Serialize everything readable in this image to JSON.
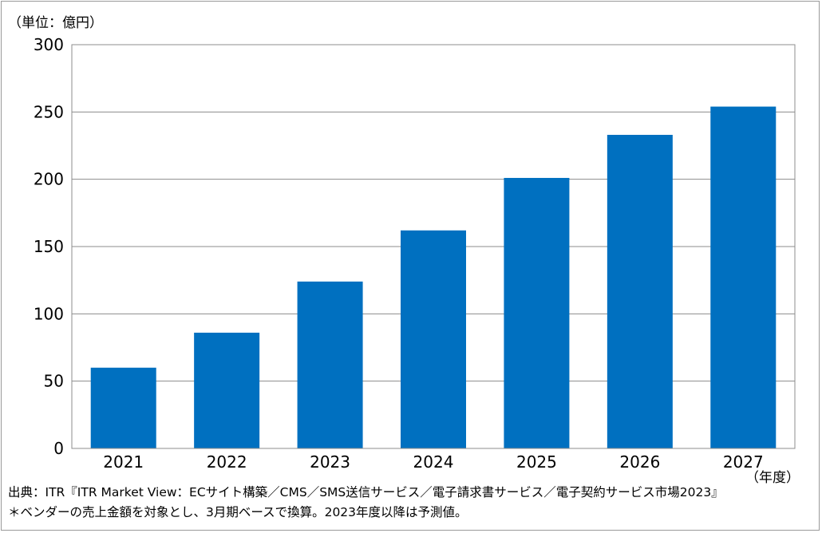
{
  "unit_label": "（単位：億円）",
  "chart_data": {
    "type": "bar",
    "categories": [
      "2021",
      "2022",
      "2023",
      "2024",
      "2025",
      "2026",
      "2027"
    ],
    "values": [
      60,
      86,
      124,
      162,
      201,
      233,
      254
    ],
    "yticks": [
      0,
      50,
      100,
      150,
      200,
      250,
      300
    ],
    "ylim": [
      0,
      300
    ],
    "xlabel": "（年度）",
    "ylabel": "",
    "grid": true,
    "bar_color": "#0070c0",
    "grid_color": "#8c8c8c"
  },
  "source": "出典：ITR『ITR Market View：ECサイト構築／CMS／SMS送信サービス／電子請求書サービス／電子契約サービス市場2023』",
  "note": "＊ベンダーの売上金額を対象とし、3月期ベースで換算。2023年度以降は予測値。"
}
